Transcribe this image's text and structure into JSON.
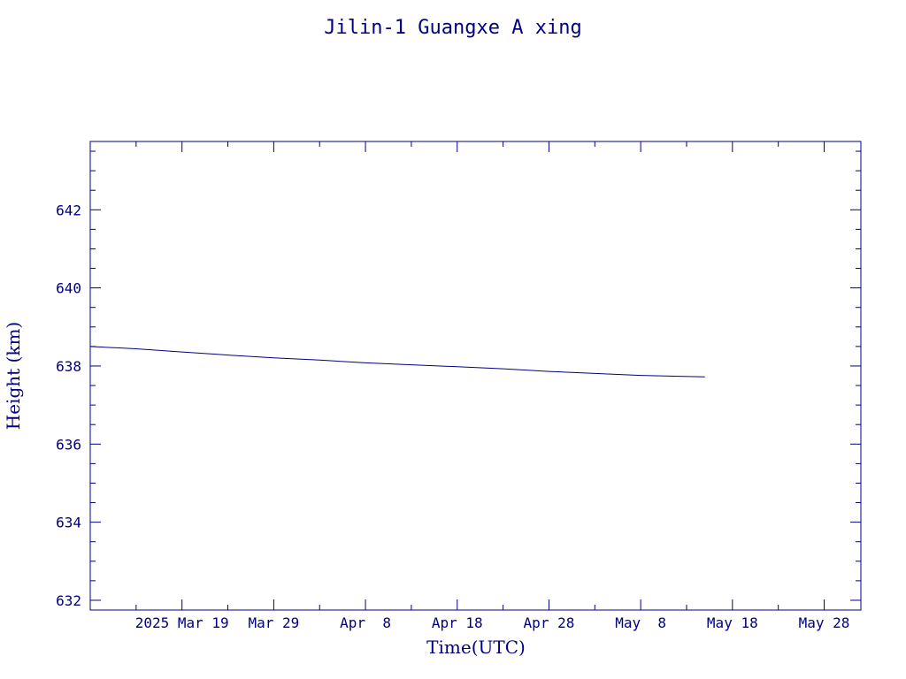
{
  "colors": {
    "ink": "#000080",
    "background": "#ffffff"
  },
  "chart_data": {
    "type": "line",
    "title": "Jilin-1 Guangxe A xing",
    "xlabel": "Time(UTC)",
    "ylabel": "Height (km)",
    "x_axis_type": "date",
    "xlim": [
      "2025-03-09",
      "2025-06-01"
    ],
    "ylim": [
      631.75,
      643.75
    ],
    "x_ticks": [
      {
        "date": "2025-03-19",
        "label": "2025 Mar 19"
      },
      {
        "date": "2025-03-29",
        "label": "Mar 29"
      },
      {
        "date": "2025-04-08",
        "label": "Apr  8"
      },
      {
        "date": "2025-04-18",
        "label": "Apr 18"
      },
      {
        "date": "2025-04-28",
        "label": "Apr 28"
      },
      {
        "date": "2025-05-08",
        "label": "May  8"
      },
      {
        "date": "2025-05-18",
        "label": "May 18"
      },
      {
        "date": "2025-05-28",
        "label": "May 28"
      }
    ],
    "y_ticks": [
      632,
      634,
      636,
      638,
      640,
      642
    ],
    "grid": false,
    "series": [
      {
        "points": [
          {
            "x": "2025-03-09",
            "y": 638.5
          },
          {
            "x": "2025-03-14",
            "y": 638.44
          },
          {
            "x": "2025-03-19",
            "y": 638.36
          },
          {
            "x": "2025-03-24",
            "y": 638.28
          },
          {
            "x": "2025-03-29",
            "y": 638.21
          },
          {
            "x": "2025-04-03",
            "y": 638.15
          },
          {
            "x": "2025-04-08",
            "y": 638.08
          },
          {
            "x": "2025-04-13",
            "y": 638.03
          },
          {
            "x": "2025-04-18",
            "y": 637.98
          },
          {
            "x": "2025-04-23",
            "y": 637.93
          },
          {
            "x": "2025-04-28",
            "y": 637.86
          },
          {
            "x": "2025-05-03",
            "y": 637.81
          },
          {
            "x": "2025-05-08",
            "y": 637.76
          },
          {
            "x": "2025-05-15",
            "y": 637.72
          }
        ]
      }
    ]
  }
}
